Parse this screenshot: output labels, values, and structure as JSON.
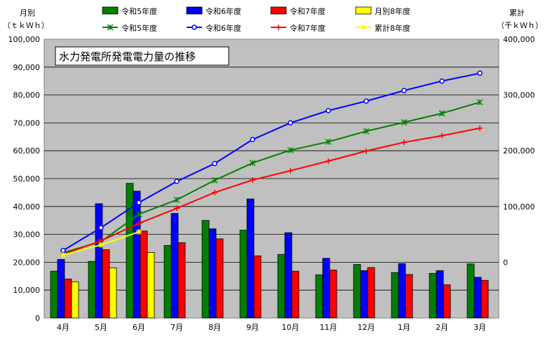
{
  "chart_data": {
    "type": "bar",
    "title": "水力発電所発電電力量の推移",
    "left_axis": {
      "label_line1": "月別",
      "label_line2": "（ｔｋＷｈ）",
      "range": [
        0,
        100000
      ]
    },
    "right_axis": {
      "label_line1": "累計",
      "label_line2": "（千ｋＷｈ）",
      "range": [
        -100000,
        400000
      ]
    },
    "categories": [
      "4月",
      "5月",
      "6月",
      "7月",
      "8月",
      "9月",
      "10月",
      "11月",
      "12月",
      "1月",
      "2月",
      "3月"
    ],
    "left_ticks": [
      "0",
      "10,000",
      "20,000",
      "30,000",
      "40,000",
      "50,000",
      "60,000",
      "70,000",
      "80,000",
      "90,000",
      "100,000"
    ],
    "right_ticks": [
      "0",
      "100,000",
      "200,000",
      "300,000",
      "400,000"
    ],
    "bar_series": [
      {
        "name": "令和5年度",
        "color": "#008000",
        "values": [
          16800,
          20300,
          48300,
          26000,
          35000,
          31500,
          22800,
          15500,
          19200,
          16300,
          16000,
          19400
        ]
      },
      {
        "name": "令和6年度",
        "color": "#0000FF",
        "values": [
          21000,
          41000,
          45500,
          37500,
          32000,
          42700,
          30600,
          21400,
          17000,
          19500,
          17000,
          14600
        ]
      },
      {
        "name": "令和7年度",
        "color": "#FF0000",
        "values": [
          14000,
          24500,
          31200,
          27000,
          28400,
          22300,
          16800,
          17200,
          18100,
          15600,
          11900,
          13500
        ]
      },
      {
        "name": "月別8年度",
        "color": "#FFFF00",
        "values": [
          13000,
          18000,
          23500
        ]
      }
    ],
    "line_series": [
      {
        "name": "令和5年度",
        "color": "#008000",
        "marker": "asterisk",
        "values": [
          17000,
          37000,
          86000,
          112000,
          147000,
          178000,
          201000,
          216000,
          235000,
          251000,
          267000,
          287000
        ]
      },
      {
        "name": "令和6年度",
        "color": "#0000FF",
        "marker": "circle",
        "values": [
          21000,
          62000,
          107000,
          145000,
          177000,
          220000,
          250000,
          272000,
          289000,
          308000,
          325000,
          339000
        ]
      },
      {
        "name": "令和7年度",
        "color": "#FF0000",
        "marker": "plus",
        "values": [
          14000,
          38500,
          69700,
          96700,
          125100,
          147400,
          164200,
          181400,
          199500,
          215100,
          227000,
          240500
        ]
      },
      {
        "name": "累計8年度",
        "color": "#FFFF00",
        "marker": "star",
        "values": [
          13000,
          31000,
          54500
        ]
      }
    ],
    "grid": true,
    "legend_position": "top"
  }
}
